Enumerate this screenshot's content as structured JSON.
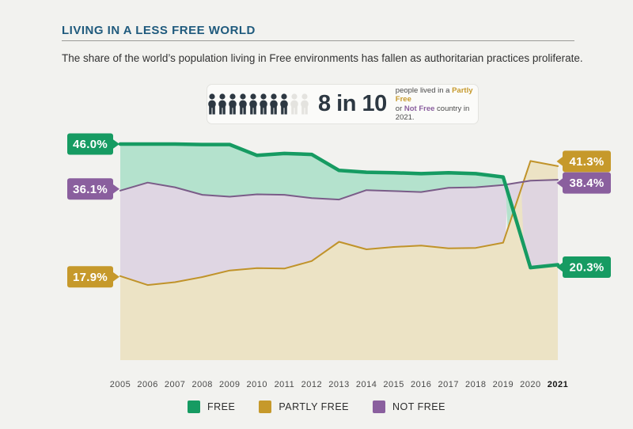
{
  "page": {
    "background": "#f2f2ef"
  },
  "header": {
    "title": "LIVING IN A LESS FREE WORLD",
    "title_color": "#1f5a7d",
    "subtitle": "The share of the world’s population living in Free environments has fallen as authoritarian practices proliferate."
  },
  "infographic": {
    "big_text": "8 in 10",
    "people_total": 10,
    "people_filled": 8,
    "person_filled_color": "#2d3842",
    "person_empty_color": "#e4e3df",
    "caption": {
      "line1_prefix": "people lived in a ",
      "partly_free": "Partly Free",
      "line2_prefix": "or ",
      "not_free": "Not Free",
      "line2_suffix": " country in 2021."
    }
  },
  "chart_data": {
    "type": "area",
    "title": "Share of world population by freedom status, 2005-2021 (%)",
    "x": [
      2005,
      2006,
      2007,
      2008,
      2009,
      2010,
      2011,
      2012,
      2013,
      2014,
      2015,
      2016,
      2017,
      2018,
      2019,
      2020,
      2021
    ],
    "ylim": [
      0,
      50
    ],
    "grid": false,
    "legend_position": "bottom",
    "series": [
      {
        "name": "FREE",
        "line_color": "#169b62",
        "fill_color": "#b4e2cd",
        "start_label": "46.0%",
        "end_label": "20.3%",
        "values": [
          46.0,
          46.0,
          46.0,
          45.9,
          45.9,
          43.6,
          44.0,
          43.8,
          40.4,
          40.0,
          39.9,
          39.7,
          39.9,
          39.7,
          39.0,
          19.7,
          20.3
        ]
      },
      {
        "name": "PARTLY FREE",
        "line_color": "#c0932a",
        "fill_color": "#ece3c5",
        "start_label": "17.9%",
        "end_label": "41.3%",
        "values": [
          17.9,
          16.0,
          16.6,
          17.7,
          19.1,
          19.6,
          19.5,
          21.1,
          25.2,
          23.6,
          24.1,
          24.4,
          23.8,
          23.9,
          25.0,
          42.4,
          41.3
        ]
      },
      {
        "name": "NOT FREE",
        "line_color": "#7a5c88",
        "fill_color": "#ddd4e2",
        "start_label": "36.1%",
        "end_label": "38.4%",
        "values": [
          36.1,
          37.8,
          36.8,
          35.2,
          34.8,
          35.3,
          35.2,
          34.5,
          34.2,
          36.2,
          36.0,
          35.8,
          36.7,
          36.8,
          37.3,
          38.2,
          38.4
        ]
      }
    ],
    "badge_colors": {
      "FREE": "#169b62",
      "PARTLY FREE": "#c6992b",
      "NOT FREE": "#8a5f9e"
    }
  },
  "legend": {
    "items": [
      {
        "label": "FREE",
        "color": "#169b62"
      },
      {
        "label": "PARTLY FREE",
        "color": "#c6992b"
      },
      {
        "label": "NOT FREE",
        "color": "#8a5f9e"
      }
    ]
  }
}
